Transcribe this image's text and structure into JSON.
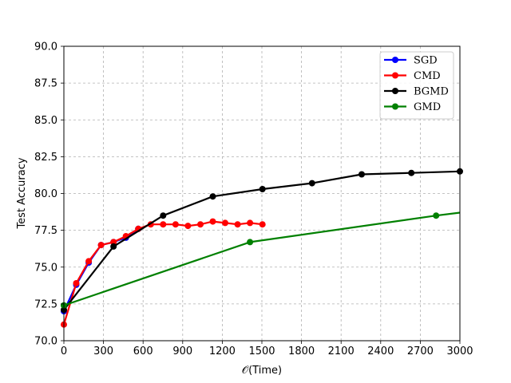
{
  "chart_data": {
    "type": "line",
    "xlabel": "𝒪(Time)",
    "ylabel": "Test Accuracy",
    "xlim": [
      0,
      3000
    ],
    "ylim": [
      70.0,
      90.0
    ],
    "xticks": [
      0,
      300,
      600,
      900,
      1200,
      1500,
      1800,
      2100,
      2400,
      2700,
      3000
    ],
    "yticks": [
      70.0,
      72.5,
      75.0,
      77.5,
      80.0,
      82.5,
      85.0,
      87.5,
      90.0
    ],
    "ytick_labels": [
      "70.0",
      "72.5",
      "75.0",
      "77.5",
      "80.0",
      "82.5",
      "85.0",
      "87.5",
      "90.0"
    ],
    "grid": true,
    "legend_position": "top-right",
    "series": [
      {
        "name": "SGD",
        "color": "#0000ff",
        "x": [
          0,
          94,
          188,
          282,
          376,
          470,
          564
        ],
        "y": [
          72.0,
          73.8,
          75.3,
          76.5,
          76.7,
          77.0,
          77.6
        ]
      },
      {
        "name": "CMD",
        "color": "#ff0000",
        "x": [
          0,
          94,
          188,
          282,
          376,
          470,
          564,
          658,
          752,
          846,
          940,
          1034,
          1128,
          1222,
          1316,
          1410,
          1504
        ],
        "y": [
          71.1,
          73.9,
          75.4,
          76.5,
          76.7,
          77.1,
          77.6,
          77.9,
          77.9,
          77.9,
          77.8,
          77.9,
          78.1,
          78.0,
          77.9,
          78.0,
          77.9
        ]
      },
      {
        "name": "BGMD",
        "color": "#000000",
        "x": [
          0,
          376,
          752,
          1128,
          1504,
          1880,
          2256,
          2632,
          3000
        ],
        "y": [
          72.1,
          76.4,
          78.5,
          79.8,
          80.3,
          80.7,
          81.3,
          81.4,
          81.5
        ]
      },
      {
        "name": "GMD",
        "color": "#008000",
        "x": [
          0,
          1410,
          2820,
          3000
        ],
        "y": [
          72.4,
          76.7,
          78.5,
          78.7
        ],
        "markers": [
          true,
          true,
          true,
          false
        ]
      }
    ]
  }
}
